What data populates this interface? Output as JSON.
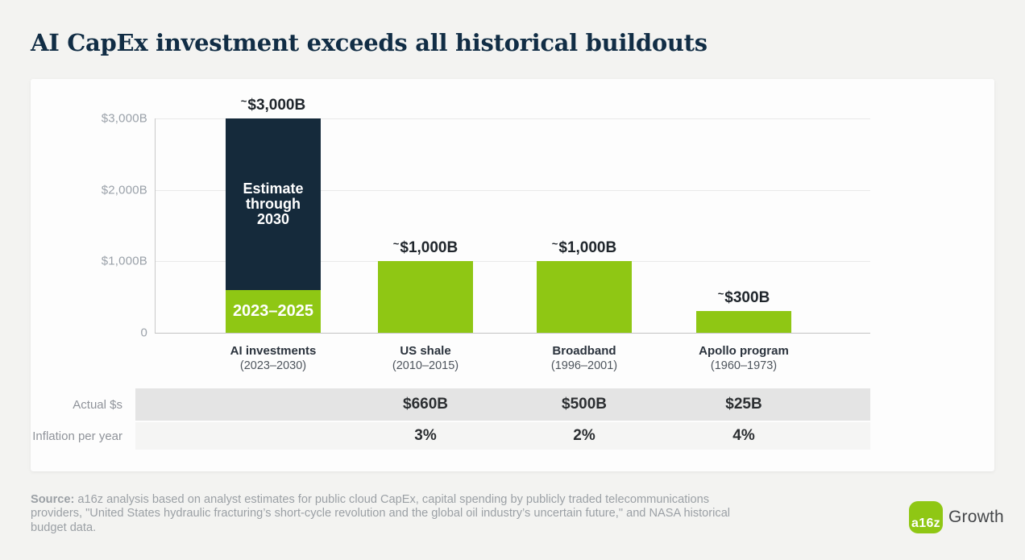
{
  "title": "AI CapEx investment exceeds all historical buildouts",
  "chart_data": {
    "type": "bar",
    "stacked": true,
    "title": "AI CapEx investment exceeds all historical buildouts",
    "y_unit": "billions of USD",
    "ylim": [
      0,
      3000
    ],
    "grid": true,
    "y_ticks": [
      {
        "value": 3000,
        "label": "$3,000B"
      },
      {
        "value": 2000,
        "label": "$2,000B"
      },
      {
        "value": 1000,
        "label": "$1,000B"
      },
      {
        "value": 0,
        "label": "0"
      }
    ],
    "bars": [
      {
        "category": "AI investments",
        "period": "(2023–2030)",
        "approx": "~",
        "total_label": "$3,000B",
        "total": 3000,
        "segments": [
          {
            "label": "Estimate through 2030",
            "value": 2400,
            "color": "#152a3b"
          },
          {
            "label": "2023–2025",
            "value": 600,
            "color": "#8fc714"
          }
        ]
      },
      {
        "category": "US shale",
        "period": "(2010–2015)",
        "approx": "~",
        "total_label": "$1,000B",
        "total": 1000,
        "segments": [
          {
            "label": "",
            "value": 1000,
            "color": "#8fc714"
          }
        ]
      },
      {
        "category": "Broadband",
        "period": "(1996–2001)",
        "approx": "~",
        "total_label": "$1,000B",
        "total": 1000,
        "segments": [
          {
            "label": "",
            "value": 1000,
            "color": "#8fc714"
          }
        ]
      },
      {
        "category": "Apollo program",
        "period": "(1960–1973)",
        "approx": "~",
        "total_label": "$300B",
        "total": 300,
        "segments": [
          {
            "label": "",
            "value": 300,
            "color": "#8fc714"
          }
        ]
      }
    ],
    "table": {
      "rows": [
        {
          "label": "Actual $s",
          "values": [
            "",
            "$660B",
            "$500B",
            "$25B"
          ]
        },
        {
          "label": "Inflation per year",
          "values": [
            "",
            "3%",
            "2%",
            "4%"
          ]
        }
      ]
    },
    "colors": {
      "green": "#8fc714",
      "navy": "#152a3b"
    }
  },
  "source": {
    "label": "Source:",
    "lines": [
      "a16z analysis based on analyst estimates for public cloud CapEx, capital spending by publicly traded telecommunications",
      "providers, \"United States hydraulic fracturing’s short-cycle revolution and the global oil industry’s uncertain future,\" and NASA historical",
      "budget data."
    ]
  },
  "logo": {
    "mark": "a16z",
    "suffix": "Growth"
  }
}
